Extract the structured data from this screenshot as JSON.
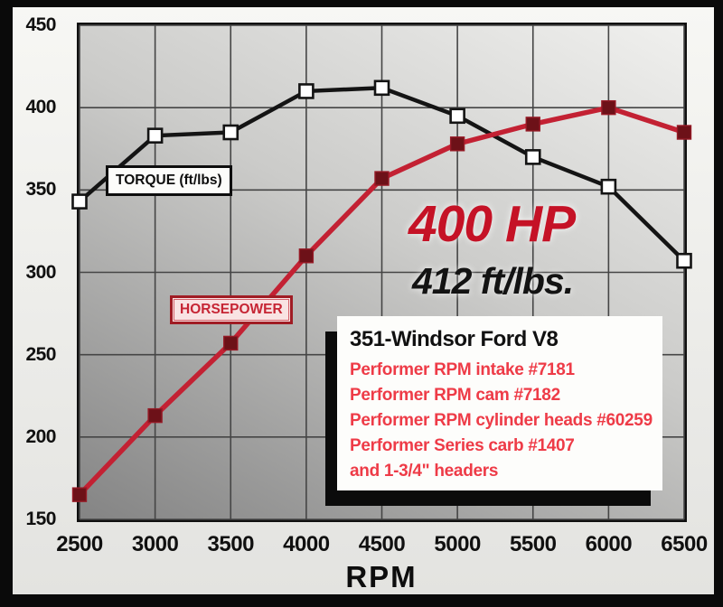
{
  "chart_data": {
    "type": "line",
    "x": [
      2500,
      3000,
      3500,
      4000,
      4500,
      5000,
      5500,
      6000,
      6500
    ],
    "xticks": [
      2500,
      3000,
      3500,
      4000,
      4500,
      5000,
      5500,
      6000,
      6500
    ],
    "yticks": [
      150,
      200,
      250,
      300,
      350,
      400,
      450
    ],
    "xlim": [
      2500,
      6500
    ],
    "ylim": [
      150,
      450
    ],
    "xlabel": "RPM",
    "ylabel": "",
    "title": "",
    "grid": true,
    "grid_color": "#454545",
    "plot_bg_top": "#f0f0ee",
    "plot_bg_bottom": "#848484",
    "series": [
      {
        "name": "TORQUE (ft/lbs)",
        "values": [
          343,
          383,
          385,
          410,
          412,
          395,
          370,
          352,
          307
        ],
        "line_color": "#141414",
        "line_width": 4.5,
        "marker_fill": "#ffffff",
        "marker_stroke": "#141414",
        "marker_stroke_width": 2.6,
        "marker_size": 15
      },
      {
        "name": "HORSEPOWER",
        "values": [
          165,
          213,
          257,
          310,
          357,
          378,
          390,
          400,
          385
        ],
        "line_color": "#c32133",
        "line_width": 5.5,
        "marker_fill": "#6d1118",
        "marker_stroke": "#961a26",
        "marker_stroke_width": 1.4,
        "marker_size": 15
      }
    ],
    "legend_position": "on-curve-labels",
    "annotations": [
      "400 HP",
      "412 ft/lbs."
    ]
  },
  "overlays": {
    "torque_label": "TORQUE (ft/lbs)",
    "horsepower_label": "HORSEPOWER",
    "peak_hp": "400 HP",
    "peak_torque": "412 ft/lbs.",
    "info_box": {
      "title": "351-Windsor Ford V8",
      "lines": [
        "Performer RPM intake #7181",
        "Performer RPM cam #7182",
        "Performer RPM cylinder heads #60259",
        "Performer Series carb #1407",
        "and 1-3/4\" headers"
      ]
    }
  },
  "colors": {
    "peak_hp_text": "#c51226",
    "peak_torque_text": "#131313",
    "torque_curve": "#141414",
    "hp_curve": "#c32133",
    "info_red_text": "#ee3b47",
    "frame": "#0a0a0a"
  }
}
